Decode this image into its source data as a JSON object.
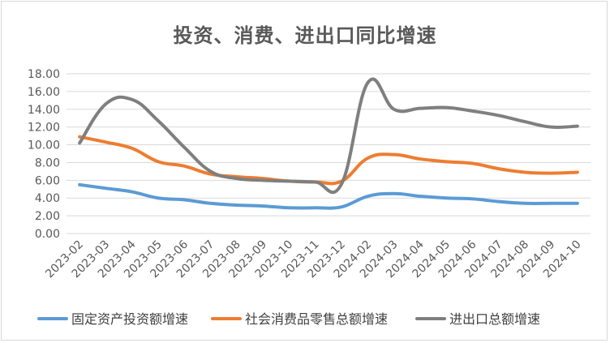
{
  "chart_data": {
    "type": "line",
    "title": "投资、消费、进出口同比增速",
    "xlabel": "",
    "ylabel": "",
    "ylim": [
      0,
      18
    ],
    "ytick_step": 2,
    "ytick_labels": [
      "0.00",
      "2.00",
      "4.00",
      "6.00",
      "8.00",
      "10.00",
      "12.00",
      "14.00",
      "16.00",
      "18.00"
    ],
    "categories": [
      "2023-02",
      "2023-03",
      "2023-04",
      "2023-05",
      "2023-06",
      "2023-07",
      "2023-08",
      "2023-09",
      "2023-10",
      "2023-11",
      "2023-12",
      "2024-02",
      "2024-03",
      "2024-04",
      "2024-05",
      "2024-06",
      "2024-07",
      "2024-08",
      "2024-09",
      "2024-10"
    ],
    "series": [
      {
        "name": "固定资产投资额增速",
        "color": "#5b9bd5",
        "values": [
          5.5,
          5.1,
          4.7,
          4.0,
          3.8,
          3.4,
          3.2,
          3.1,
          2.9,
          2.9,
          3.0,
          4.2,
          4.5,
          4.2,
          4.0,
          3.9,
          3.6,
          3.4,
          3.4,
          3.4
        ]
      },
      {
        "name": "社会消费品零售总额增速",
        "color": "#ed7d31",
        "values": [
          10.9,
          10.3,
          9.6,
          8.1,
          7.6,
          6.7,
          6.4,
          6.2,
          5.9,
          5.8,
          5.9,
          8.5,
          8.9,
          8.4,
          8.1,
          7.9,
          7.3,
          6.9,
          6.8,
          6.9
        ]
      },
      {
        "name": "进出口总额增速",
        "color": "#7f7f7f",
        "values": [
          10.2,
          14.6,
          15.1,
          12.7,
          9.7,
          7.0,
          6.2,
          6.0,
          5.9,
          5.8,
          5.6,
          17.0,
          14.0,
          14.1,
          14.2,
          13.8,
          13.3,
          12.6,
          12.0,
          12.1
        ]
      }
    ],
    "legend": "bottom"
  }
}
